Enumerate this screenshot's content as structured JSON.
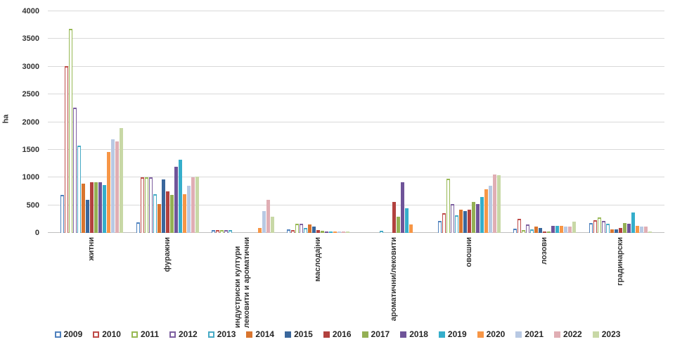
{
  "chart_data": {
    "type": "bar",
    "title": "",
    "ylabel": "ha",
    "xlabel": "",
    "ylim": [
      0,
      4000
    ],
    "ytick_step": 500,
    "grid": true,
    "legend_position": "bottom",
    "categories": [
      "житни",
      "фуражни",
      "индустриски култури\nлековити и ароматични",
      "маслодајни",
      "ароматични/лековити",
      "овошни",
      "лозови",
      "градинарски"
    ],
    "series": [
      {
        "name": "2009",
        "style": "outline",
        "color": "#4F81BD",
        "values": [
          680,
          190,
          50,
          60,
          0,
          220,
          80,
          180
        ]
      },
      {
        "name": "2010",
        "style": "outline",
        "color": "#BE4B48",
        "values": [
          3010,
          1000,
          45,
          45,
          0,
          350,
          250,
          230
        ]
      },
      {
        "name": "2011",
        "style": "outline",
        "color": "#98B954",
        "values": [
          3680,
          1000,
          50,
          170,
          0,
          980,
          50,
          280
        ]
      },
      {
        "name": "2012",
        "style": "outline",
        "color": "#7D60A0",
        "values": [
          2260,
          1000,
          50,
          170,
          0,
          520,
          150,
          215
        ]
      },
      {
        "name": "2013",
        "style": "outline",
        "color": "#46AAC5",
        "values": [
          1570,
          700,
          50,
          90,
          40,
          320,
          60,
          160
        ]
      },
      {
        "name": "2014",
        "style": "solid",
        "color": "#D9752E",
        "values": [
          890,
          520,
          0,
          150,
          0,
          420,
          110,
          60
        ]
      },
      {
        "name": "2015",
        "style": "solid",
        "color": "#3A679C",
        "values": [
          600,
          970,
          0,
          120,
          0,
          390,
          90,
          70
        ]
      },
      {
        "name": "2016",
        "style": "solid",
        "color": "#B2413E",
        "values": [
          920,
          750,
          0,
          55,
          560,
          420,
          25,
          90
        ]
      },
      {
        "name": "2017",
        "style": "solid",
        "color": "#94B054",
        "values": [
          920,
          690,
          0,
          40,
          290,
          560,
          30,
          180
        ]
      },
      {
        "name": "2018",
        "style": "solid",
        "color": "#6F5499",
        "values": [
          920,
          1200,
          0,
          20,
          920,
          520,
          130,
          170
        ]
      },
      {
        "name": "2019",
        "style": "solid",
        "color": "#35AECB",
        "values": [
          870,
          1320,
          0,
          25,
          440,
          650,
          130,
          370
        ]
      },
      {
        "name": "2020",
        "style": "solid",
        "color": "#F79646",
        "values": [
          1460,
          700,
          90,
          10,
          150,
          790,
          130,
          130
        ]
      },
      {
        "name": "2021",
        "style": "solid",
        "color": "#B8C9E3",
        "values": [
          1690,
          850,
          400,
          18,
          0,
          850,
          110,
          110
        ]
      },
      {
        "name": "2022",
        "style": "solid",
        "color": "#E0AEB4",
        "values": [
          1650,
          1000,
          600,
          12,
          0,
          1060,
          120,
          110
        ]
      },
      {
        "name": "2023",
        "style": "solid",
        "color": "#C8D8A6",
        "values": [
          1890,
          1020,
          290,
          28,
          0,
          1040,
          200,
          30
        ]
      }
    ]
  }
}
